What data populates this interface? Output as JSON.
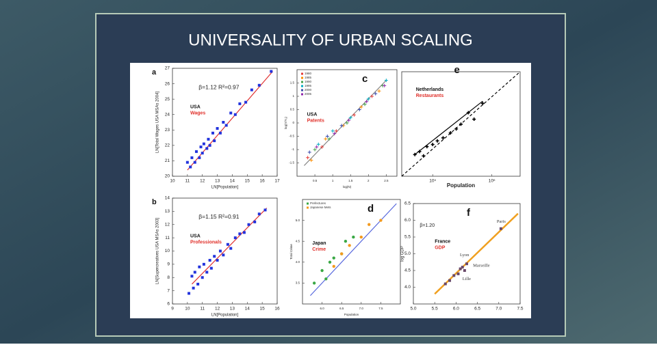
{
  "title": "UNIVERSALITY OF URBAN SCALING",
  "chart_data": [
    {
      "type": "scatter",
      "panel": "a",
      "annotation": "β=1.12  R²=0.97",
      "country": "USA",
      "subject": "Wages",
      "xlabel": "LN[Population]",
      "ylabel": "LN[Total Wages USA MSAs 2004]",
      "xlim": [
        10,
        17
      ],
      "xticks": [
        10,
        11,
        12,
        13,
        14,
        15,
        16,
        17
      ],
      "ylim": [
        20,
        27
      ],
      "yticks": [
        20,
        21,
        22,
        23,
        24,
        25,
        26,
        27
      ],
      "series": [
        {
          "color": "#2233dd",
          "marker": "square",
          "x": [
            11.0,
            11.2,
            11.3,
            11.5,
            11.6,
            11.8,
            11.9,
            12.0,
            12.1,
            12.3,
            12.4,
            12.5,
            12.7,
            12.8,
            13.0,
            13.2,
            13.4,
            13.6,
            13.9,
            14.2,
            14.5,
            14.9,
            15.3,
            15.8,
            16.6
          ],
          "values": [
            20.9,
            20.6,
            21.2,
            20.9,
            21.6,
            21.2,
            21.9,
            21.5,
            22.1,
            21.8,
            22.4,
            22.0,
            22.8,
            22.3,
            23.1,
            22.8,
            23.5,
            23.3,
            24.1,
            24.0,
            24.7,
            24.8,
            25.6,
            25.9,
            26.8
          ]
        }
      ],
      "lines": [
        {
          "color": "#e03030",
          "x": [
            11.0,
            16.7
          ],
          "values": [
            20.4,
            26.8
          ]
        }
      ]
    },
    {
      "type": "scatter",
      "panel": "b",
      "annotation": "β=1.15  R²=0.91",
      "country": "USA",
      "subject": "Professionals",
      "xlabel": "LN[Population]",
      "ylabel": "LN[Supercreatives USA MSAs 2003]",
      "xlim": [
        9,
        16
      ],
      "xticks": [
        9,
        10,
        11,
        12,
        13,
        14,
        15,
        16
      ],
      "ylim": [
        6,
        14
      ],
      "yticks": [
        6,
        7,
        8,
        9,
        10,
        11,
        12,
        13,
        14
      ],
      "series": [
        {
          "color": "#2233dd",
          "marker": "square",
          "x": [
            10.1,
            10.3,
            10.4,
            10.5,
            10.7,
            10.8,
            11.0,
            11.1,
            11.3,
            11.5,
            11.6,
            11.8,
            12.0,
            12.2,
            12.4,
            12.7,
            12.9,
            13.2,
            13.5,
            13.8,
            14.1,
            14.5,
            14.8,
            15.2
          ],
          "values": [
            6.8,
            8.1,
            7.2,
            8.4,
            7.5,
            8.8,
            8.0,
            9.0,
            8.4,
            9.3,
            8.7,
            9.6,
            9.3,
            10.0,
            9.7,
            10.5,
            10.2,
            11.0,
            11.3,
            11.4,
            12.0,
            12.2,
            12.8,
            13.1
          ]
        }
      ],
      "lines": [
        {
          "color": "#e03030",
          "x": [
            10.3,
            15.3
          ],
          "values": [
            7.5,
            13.25
          ]
        }
      ]
    },
    {
      "type": "scatter",
      "panel": "c",
      "country": "USA",
      "subject": "Patents",
      "legend": true,
      "xlabel": "log(N)",
      "ylabel": "log(Y/Y₀)",
      "xlim": [
        0,
        2.8
      ],
      "xticks": [
        {
          "value": 0.5,
          "label": "0.5"
        },
        {
          "value": 1,
          "label": "1"
        },
        {
          "value": 1.5,
          "label": "1.5"
        },
        {
          "value": 2,
          "label": "2"
        },
        {
          "value": 2.5,
          "label": "2.5"
        }
      ],
      "ylim": [
        -2,
        2
      ],
      "yticks": [
        -1.5,
        -1,
        -0.5,
        0,
        0.5,
        1,
        1.5
      ],
      "series": [
        {
          "name": "1980",
          "color": "#e53935",
          "marker": "cross",
          "x": [
            0.3,
            0.7,
            1.1,
            1.6,
            2.1
          ],
          "values": [
            -1.3,
            -0.9,
            -0.3,
            0.3,
            1.0
          ]
        },
        {
          "name": "1985",
          "color": "#fb8c00",
          "marker": "cross",
          "x": [
            0.4,
            0.8,
            1.3,
            1.8,
            2.3
          ],
          "values": [
            -1.4,
            -0.6,
            -0.1,
            0.6,
            1.2
          ]
        },
        {
          "name": "1990",
          "color": "#43a047",
          "marker": "cross",
          "x": [
            0.5,
            0.9,
            1.4,
            1.9,
            2.4
          ],
          "values": [
            -1.0,
            -0.6,
            0.0,
            0.7,
            1.4
          ]
        },
        {
          "name": "1995",
          "color": "#00acc1",
          "marker": "cross",
          "x": [
            0.6,
            1.0,
            1.5,
            2.0,
            2.5
          ],
          "values": [
            -0.8,
            -0.3,
            0.2,
            0.9,
            1.6
          ]
        },
        {
          "name": "2000",
          "color": "#3949ab",
          "marker": "cross",
          "x": [
            0.35,
            0.85,
            1.25,
            1.75,
            2.2
          ],
          "values": [
            -1.1,
            -0.5,
            -0.1,
            0.5,
            1.1
          ]
        },
        {
          "name": "2005",
          "color": "#8e24aa",
          "marker": "cross",
          "x": [
            0.55,
            1.05,
            1.45,
            1.95,
            2.45
          ],
          "values": [
            -0.9,
            -0.4,
            0.1,
            0.8,
            1.4
          ]
        }
      ],
      "lines": [
        {
          "color": "#888888",
          "x": [
            0.2,
            2.5
          ],
          "values": [
            -1.6,
            1.6
          ]
        }
      ]
    },
    {
      "type": "scatter",
      "panel": "d",
      "country": "Japan",
      "subject": "Crime",
      "legend": true,
      "xlabel": "Population",
      "ylabel": "Total Crime",
      "xlim": [
        5.5,
        8
      ],
      "xticks": [
        {
          "value": 6,
          "label": "6.0"
        },
        {
          "value": 6.5,
          "label": "6.5"
        },
        {
          "value": 7,
          "label": "7.0"
        },
        {
          "value": 7.5,
          "label": "7.5"
        }
      ],
      "ylim": [
        3,
        5.5
      ],
      "yticks": [
        {
          "value": 3.5,
          "label": "3.5"
        },
        {
          "value": 4,
          "label": "4.0"
        },
        {
          "value": 4.5,
          "label": "4.5"
        },
        {
          "value": 5,
          "label": "5.0"
        }
      ],
      "series": [
        {
          "name": "Prefectures",
          "color": "#3aa845",
          "marker": "circle",
          "x": [
            5.8,
            6.0,
            6.1,
            6.2,
            6.3,
            6.5,
            6.6,
            6.8
          ],
          "values": [
            3.5,
            3.8,
            3.6,
            4.0,
            4.1,
            4.2,
            4.5,
            4.6
          ]
        },
        {
          "name": "Japanese Mets",
          "color": "#f39a1e",
          "marker": "circle",
          "x": [
            6.3,
            6.5,
            6.7,
            7.0,
            7.2,
            7.5
          ],
          "values": [
            3.9,
            4.2,
            4.4,
            4.6,
            4.9,
            5.0
          ]
        }
      ],
      "lines": [
        {
          "color": "#5566dd",
          "x": [
            5.7,
            7.9
          ],
          "values": [
            3.2,
            5.4
          ]
        }
      ]
    },
    {
      "type": "scatter",
      "panel": "e",
      "country": "Netherlands",
      "subject": "Restaurants",
      "xlabel": "Population",
      "xscale": "log",
      "yscale": "log",
      "xlim": [
        30000,
        3000000
      ],
      "xticks": [
        {
          "value": 100000,
          "label": "10⁵"
        },
        {
          "value": 1000000,
          "label": "10⁶"
        }
      ],
      "ylim": [
        10,
        2000
      ],
      "series": [
        {
          "color": "#000000",
          "marker": "cross",
          "x": [
            50000,
            60000,
            70000,
            80000,
            100000,
            120000,
            150000,
            200000,
            250000,
            300000,
            400000,
            500000,
            700000
          ],
          "values": [
            30,
            35,
            28,
            45,
            50,
            60,
            70,
            90,
            110,
            140,
            250,
            180,
            400
          ]
        }
      ],
      "lines": [
        {
          "color": "#000000",
          "x": [
            50000,
            700000
          ],
          "values": [
            30,
            450
          ]
        },
        {
          "color": "#000000",
          "dashed": true,
          "x": [
            30000,
            3000000
          ],
          "values": [
            10,
            2000
          ]
        }
      ]
    },
    {
      "type": "scatter",
      "panel": "f",
      "annotation": "β=1.20",
      "country": "France",
      "subject": "GDP",
      "ylabel": "log GDP",
      "xlim": [
        5,
        7.5
      ],
      "xticks": [
        {
          "value": 5,
          "label": "5.0"
        },
        {
          "value": 5.5,
          "label": "5.5"
        },
        {
          "value": 6,
          "label": "6.0"
        },
        {
          "value": 6.5,
          "label": "6.5"
        },
        {
          "value": 7,
          "label": "7.0"
        },
        {
          "value": 7.5,
          "label": "7.5"
        }
      ],
      "ylim": [
        3.5,
        6.5
      ],
      "yticks": [
        {
          "value": 4,
          "label": "4.0"
        },
        {
          "value": 4.5,
          "label": "4.5"
        },
        {
          "value": 5,
          "label": "5.0"
        },
        {
          "value": 5.5,
          "label": "5.5"
        },
        {
          "value": 6,
          "label": "6.0"
        },
        {
          "value": 6.5,
          "label": "6.5"
        }
      ],
      "series": [
        {
          "color": "#6a4a6a",
          "marker": "square",
          "x": [
            5.75,
            5.85,
            5.95,
            6.05,
            6.1,
            6.15,
            6.2,
            6.25,
            7.05
          ],
          "values": [
            4.1,
            4.2,
            4.35,
            4.4,
            4.55,
            4.6,
            4.5,
            4.7,
            5.75
          ]
        }
      ],
      "labeled_points": [
        {
          "label": "Paris",
          "x": 7.05,
          "y": 5.75
        },
        {
          "label": "Lyon",
          "x": 6.25,
          "y": 4.75
        },
        {
          "label": "Marseille",
          "x": 6.3,
          "y": 4.6
        },
        {
          "label": "Lille",
          "x": 6.15,
          "y": 4.45
        }
      ],
      "lines": [
        {
          "color": "#f0a020",
          "x": [
            5.5,
            7.45
          ],
          "values": [
            3.8,
            6.2
          ]
        }
      ]
    }
  ]
}
